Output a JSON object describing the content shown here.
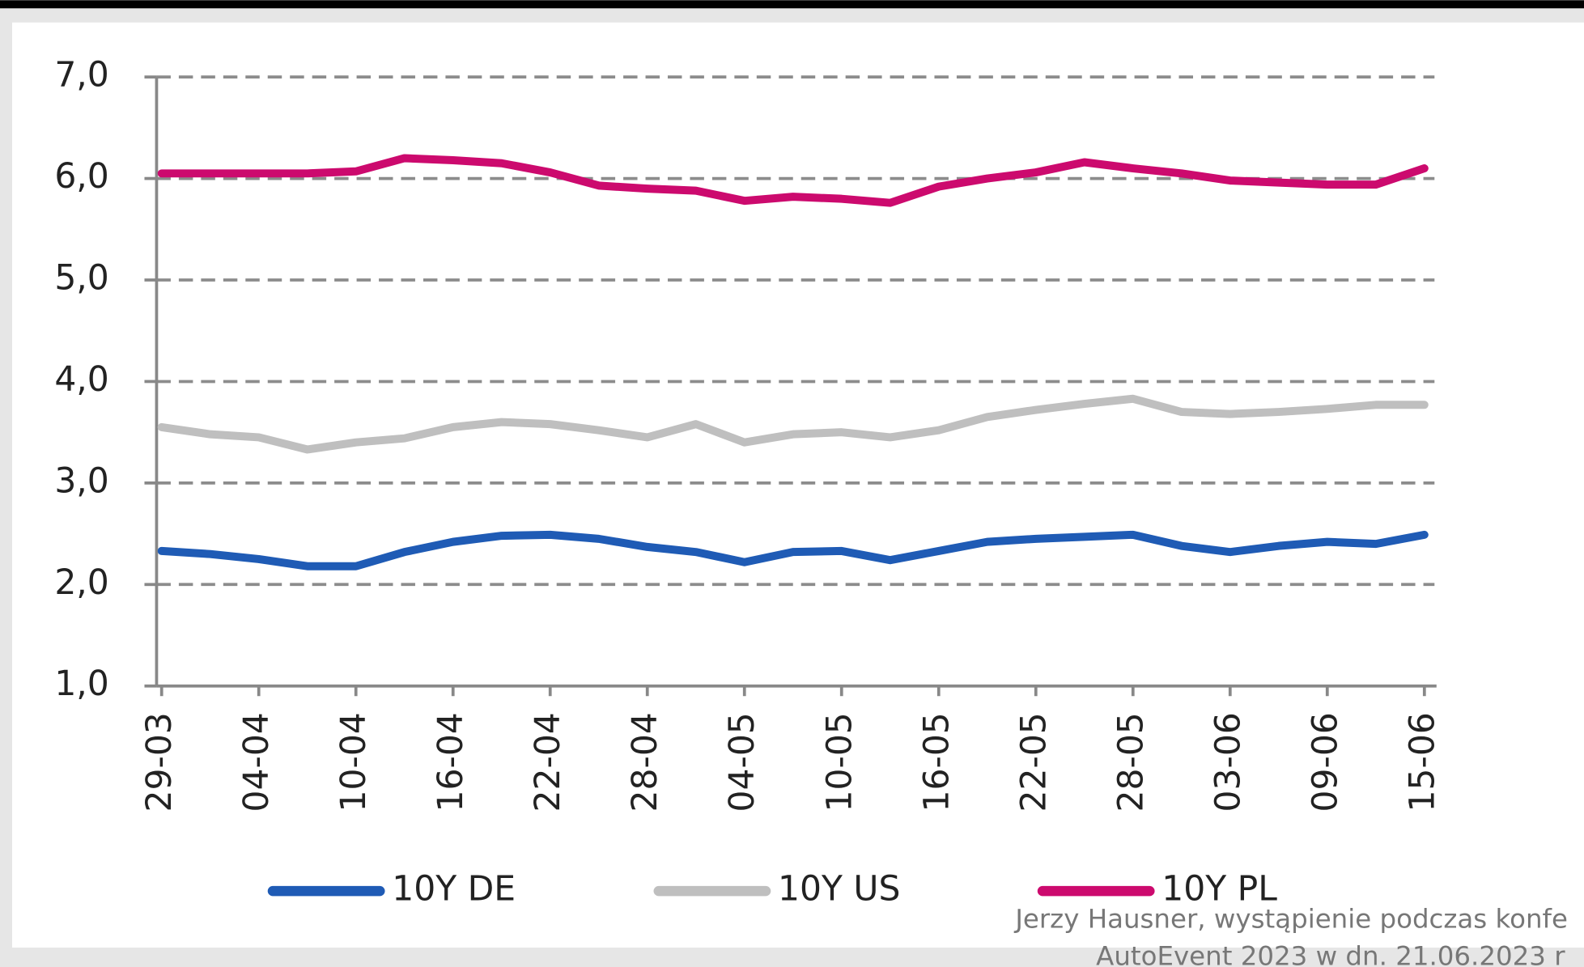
{
  "chart_data": {
    "type": "line",
    "categories": [
      "29-03",
      null,
      "04-04",
      null,
      "10-04",
      null,
      "16-04",
      null,
      "22-04",
      null,
      "28-04",
      null,
      "04-05",
      null,
      "10-05",
      null,
      "16-05",
      null,
      "22-05",
      null,
      "28-05",
      null,
      "03-06",
      null,
      "09-06",
      null,
      "15-06"
    ],
    "series": [
      {
        "name": "10Y DE",
        "color": "#1f5bb5",
        "values": [
          2.33,
          2.3,
          2.25,
          2.18,
          2.18,
          2.32,
          2.42,
          2.48,
          2.49,
          2.45,
          2.37,
          2.32,
          2.22,
          2.32,
          2.33,
          2.24,
          2.33,
          2.42,
          2.45,
          2.47,
          2.49,
          2.38,
          2.32,
          2.38,
          2.42,
          2.4,
          2.49
        ]
      },
      {
        "name": "10Y US",
        "color": "#bfbfbf",
        "values": [
          3.55,
          3.48,
          3.45,
          3.33,
          3.4,
          3.44,
          3.55,
          3.6,
          3.58,
          3.52,
          3.45,
          3.58,
          3.4,
          3.48,
          3.5,
          3.45,
          3.52,
          3.65,
          3.72,
          3.78,
          3.83,
          3.7,
          3.68,
          3.7,
          3.73,
          3.77,
          3.77
        ]
      },
      {
        "name": "10Y PL",
        "color": "#cc0a6e",
        "values": [
          6.05,
          6.05,
          6.05,
          6.05,
          6.07,
          6.2,
          6.18,
          6.15,
          6.06,
          5.93,
          5.9,
          5.88,
          5.78,
          5.82,
          5.8,
          5.76,
          5.92,
          6.0,
          6.06,
          6.16,
          6.1,
          6.05,
          5.98,
          5.96,
          5.94,
          5.94,
          6.1
        ]
      }
    ],
    "ylim": [
      1,
      7
    ],
    "yticks": [
      {
        "value": 1,
        "label": "1,0"
      },
      {
        "value": 2,
        "label": "2,0"
      },
      {
        "value": 3,
        "label": "3,0"
      },
      {
        "value": 4,
        "label": "4,0"
      },
      {
        "value": 5,
        "label": "5,0"
      },
      {
        "value": 6,
        "label": "6,0"
      },
      {
        "value": 7,
        "label": "7,0"
      }
    ],
    "grid": true,
    "legend": "bottom",
    "annotations": [
      "Jerzy Hausner, wystąpienie podczas konfe",
      "AutoEvent 2023 w dn. 21.06.2023 r"
    ]
  }
}
